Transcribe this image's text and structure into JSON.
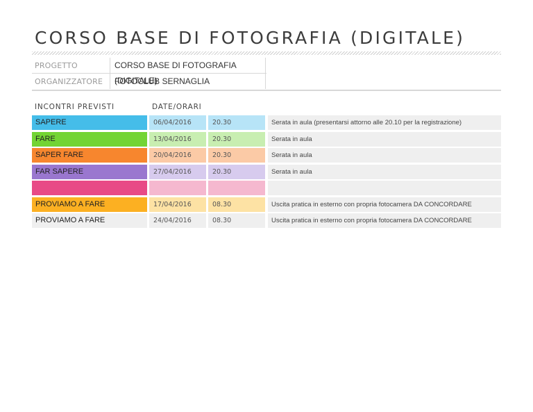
{
  "title": "CORSO BASE DI FOTOGRAFIA (DIGITALE)",
  "info": [
    {
      "label": "PROGETTO",
      "value": "CORSO BASE DI FOTOGRAFIA (DIGITALE)"
    },
    {
      "label": "ORGANIZZATORE",
      "value": "FOTOCLUB SERNAGLIA"
    }
  ],
  "headers": {
    "meetings": "INCONTRI PREVISTI",
    "dates": "DATE/ORARI"
  },
  "rows": [
    {
      "name": "SAPERE",
      "date": "06/04/2016",
      "time": "20.30",
      "note": "Serata in aula (presentarsi attorno alle 20.10 per la registrazione)",
      "color": "#45bde9",
      "light": "#b7e4f7"
    },
    {
      "name": "FARE",
      "date": "13/04/2016",
      "time": "20.30",
      "note": "Serata in aula",
      "color": "#73d434",
      "light": "#c8eeb1"
    },
    {
      "name": "SAPER FARE",
      "date": "20/04/2016",
      "time": "20.30",
      "note": "Serata in aula",
      "color": "#f7862e",
      "light": "#fbcaa6"
    },
    {
      "name": "FAR SAPERE",
      "date": "27/04/2016",
      "time": "20.30",
      "note": "Serata in aula",
      "color": "#9a77cf",
      "light": "#d7cbee"
    },
    {
      "name": "",
      "date": "",
      "time": "",
      "note": "",
      "color": "#e84a86",
      "light": "#f5b8cf"
    },
    {
      "name": "PROVIAMO A FARE",
      "date": "17/04/2016",
      "time": "08.30",
      "note": "Uscita pratica in esterno con propria fotocamera DA CONCORDARE",
      "color": "#fcb022",
      "light": "#fde2a4"
    },
    {
      "name": "PROVIAMO A FARE",
      "date": "24/04/2016",
      "time": "08.30",
      "note": "Uscita pratica in esterno con propria fotocamera DA CONCORDARE",
      "color": "#efefef",
      "light": "#efefef"
    }
  ]
}
